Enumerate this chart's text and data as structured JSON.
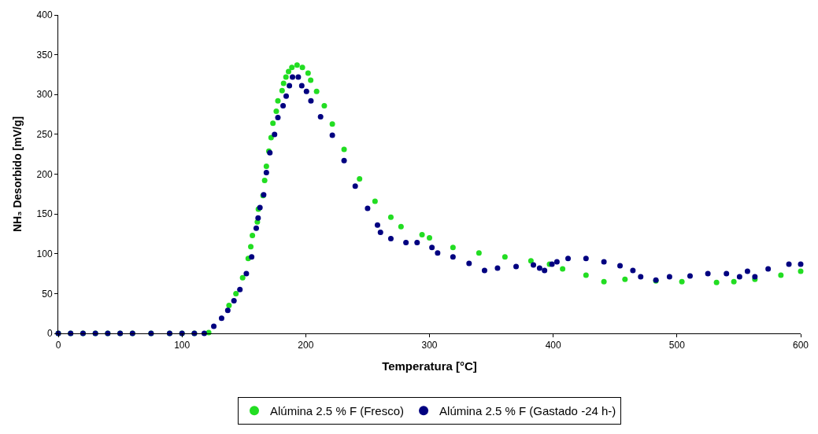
{
  "chart_data": {
    "type": "scatter",
    "xlabel": "Temperatura [°C]",
    "ylabel": "NH₃ Desorbido [mV/g]",
    "xlim": [
      0,
      600
    ],
    "xticks": [
      0,
      100,
      200,
      300,
      400,
      500,
      600
    ],
    "ylim": [
      0,
      400
    ],
    "yticks": [
      0,
      50,
      100,
      150,
      200,
      250,
      300,
      350,
      400
    ],
    "legend": "bottom",
    "marker": "circle",
    "series": [
      {
        "name": "Alúmina 2.5 % F (Fresco)",
        "color": "#22dd22",
        "x": [
          0,
          10,
          20,
          30,
          40,
          50,
          60,
          75,
          90,
          100,
          110,
          121.6,
          138,
          143.6,
          149,
          153.5,
          155.6,
          156.9,
          160.9,
          161.7,
          165.5,
          166.8,
          168.2,
          170.2,
          172,
          173.5,
          176.2,
          177.5,
          180.9,
          182.1,
          184,
          186.1,
          188.8,
          193,
          197.3,
          201.9,
          204,
          208.8,
          215,
          221.5,
          231,
          243.5,
          256,
          268.8,
          277,
          294,
          300,
          319,
          340,
          361,
          382,
          397,
          407.6,
          426.5,
          441,
          458,
          483,
          504,
          532,
          546,
          563,
          584,
          600
        ],
        "values": [
          0,
          0,
          0,
          0,
          0,
          0,
          0,
          0,
          0,
          0,
          0,
          1,
          35,
          50,
          70,
          94,
          109,
          123,
          140,
          156,
          173,
          192,
          210,
          229,
          246,
          264,
          279,
          292,
          305,
          314,
          322,
          329,
          334,
          337,
          334,
          327,
          318,
          304,
          286,
          263,
          231,
          194,
          166,
          146,
          134,
          124,
          120,
          108,
          101,
          96,
          91,
          87,
          81,
          73,
          65,
          68,
          66,
          65,
          64,
          65,
          68,
          73,
          78
        ]
      },
      {
        "name": "Alúmina 2.5 % F (Gastado -24 h-)",
        "color": "#000080",
        "x": [
          0,
          10,
          20,
          30,
          40,
          50,
          60,
          75,
          90,
          100,
          110,
          118,
          125.7,
          132,
          137,
          142,
          146.8,
          152,
          156.3,
          160,
          161.5,
          163,
          166,
          168.2,
          171,
          174.8,
          177.5,
          181.7,
          184.2,
          186.8,
          189.3,
          194,
          196.8,
          200.6,
          204.2,
          212,
          221.5,
          231,
          240,
          250,
          258,
          260.4,
          268.8,
          281,
          290,
          302,
          306.6,
          319,
          332,
          344.5,
          355,
          370,
          384,
          389,
          393,
          399,
          403,
          412,
          426.5,
          441,
          454,
          464.4,
          470.7,
          483,
          494,
          510.6,
          525,
          540,
          550.6,
          557,
          563,
          573.7,
          590.5,
          600
        ],
        "values": [
          0,
          0,
          0,
          0,
          0,
          0,
          0,
          0,
          0,
          0,
          0,
          0,
          9,
          19,
          29,
          41,
          55,
          75,
          96,
          132,
          145,
          158,
          174,
          202,
          227,
          250,
          271,
          286,
          298,
          311,
          322,
          322,
          311,
          304,
          292,
          272,
          249,
          217,
          185,
          157,
          136,
          127,
          119,
          114,
          114,
          108,
          101,
          96,
          88,
          79,
          82,
          84,
          86,
          82,
          79,
          87,
          90,
          94,
          94,
          90,
          85,
          79,
          71,
          67,
          71,
          72,
          75,
          75,
          71,
          78,
          71,
          81,
          87,
          87
        ]
      }
    ]
  }
}
